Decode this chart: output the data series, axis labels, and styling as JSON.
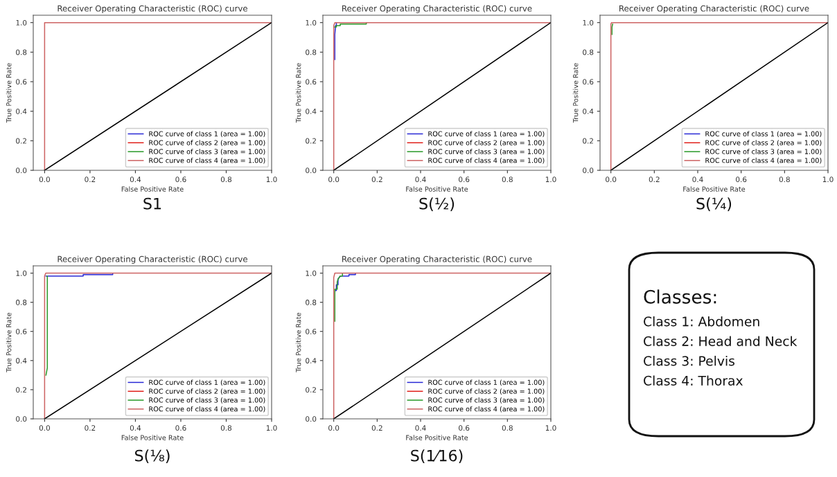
{
  "chart_data": [
    {
      "type": "line",
      "title": "Receiver Operating Characteristic (ROC) curve",
      "xlabel": "False Positive Rate",
      "ylabel": "True Positive Rate",
      "annotations": [
        "S1"
      ],
      "xlim": [
        -0.05,
        1.0
      ],
      "ylim": [
        0,
        1.05
      ],
      "xticks": [
        {
          "value": 0,
          "label": "0.0"
        },
        {
          "value": 0.2,
          "label": "0.2"
        },
        {
          "value": 0.4,
          "label": "0.4"
        },
        {
          "value": 0.6,
          "label": "0.6"
        },
        {
          "value": 0.8,
          "label": "0.8"
        },
        {
          "value": 1,
          "label": "1.0"
        }
      ],
      "yticks": [
        {
          "value": 0,
          "label": "0.0"
        },
        {
          "value": 0.2,
          "label": "0.2"
        },
        {
          "value": 0.4,
          "label": "0.4"
        },
        {
          "value": 0.6,
          "label": "0.6"
        },
        {
          "value": 0.8,
          "label": "0.8"
        },
        {
          "value": 1,
          "label": "1.0"
        }
      ],
      "legend": "bottom right",
      "grid": false,
      "series": [
        {
          "name": "ROC curve of class 1 (area = 1.00)",
          "color": "#2b2bd6"
        },
        {
          "name": "ROC curve of class 2 (area = 1.00)",
          "color": "#e0231e"
        },
        {
          "name": "ROC curve of class 3 (area = 1.00)",
          "color": "#2a9a2a"
        },
        {
          "name": "ROC curve of class 4 (area = 1.00)",
          "color": "#cd6363",
          "x": [
            0,
            0,
            1
          ],
          "values": [
            0,
            1,
            1
          ]
        },
        {
          "color": "#000000",
          "x": [
            0,
            1
          ],
          "values": [
            0,
            1
          ]
        }
      ]
    },
    {
      "type": "line",
      "title": "Receiver Operating Characteristic (ROC) curve",
      "xlabel": "False Positive Rate",
      "ylabel": "True Positive Rate",
      "annotations": [
        "S(½)"
      ],
      "xlim": [
        -0.05,
        1.0
      ],
      "ylim": [
        0,
        1.05
      ],
      "xticks": [
        {
          "value": 0,
          "label": "0.0"
        },
        {
          "value": 0.2,
          "label": "0.2"
        },
        {
          "value": 0.4,
          "label": "0.4"
        },
        {
          "value": 0.6,
          "label": "0.6"
        },
        {
          "value": 0.8,
          "label": "0.8"
        },
        {
          "value": 1,
          "label": "1.0"
        }
      ],
      "yticks": [
        {
          "value": 0,
          "label": "0.0"
        },
        {
          "value": 0.2,
          "label": "0.2"
        },
        {
          "value": 0.4,
          "label": "0.4"
        },
        {
          "value": 0.6,
          "label": "0.6"
        },
        {
          "value": 0.8,
          "label": "0.8"
        },
        {
          "value": 1,
          "label": "1.0"
        }
      ],
      "legend": "bottom right",
      "grid": false,
      "series": [
        {
          "name": "ROC curve of class 1 (area = 1.00)",
          "color": "#2b2bd6",
          "x": [
            0.005,
            0.005,
            0.008,
            0.008,
            0.012,
            0.012
          ],
          "values": [
            0.75,
            0.92,
            0.97,
            0.98,
            0.98,
            1
          ]
        },
        {
          "name": "ROC curve of class 2 (area = 1.00)",
          "color": "#e0231e"
        },
        {
          "name": "ROC curve of class 3 (area = 1.00)",
          "color": "#2a9a2a",
          "x": [
            0.004,
            0.012,
            0.012,
            0.03,
            0.03,
            0.15,
            0.15
          ],
          "values": [
            0.97,
            0.97,
            0.98,
            0.98,
            0.99,
            0.99,
            1
          ]
        },
        {
          "name": "ROC curve of class 4 (area = 1.00)",
          "color": "#cd6363",
          "x": [
            0,
            0,
            0.005,
            1
          ],
          "values": [
            0,
            0.98,
            1,
            1
          ]
        },
        {
          "color": "#000000",
          "x": [
            0,
            1
          ],
          "values": [
            0,
            1
          ]
        }
      ]
    },
    {
      "type": "line",
      "title": "Receiver Operating Characteristic (ROC) curve",
      "xlabel": "False Positive Rate",
      "ylabel": "True Positive Rate",
      "annotations": [
        "S(¼)"
      ],
      "xlim": [
        -0.05,
        1.0
      ],
      "ylim": [
        0,
        1.05
      ],
      "xticks": [
        {
          "value": 0,
          "label": "0.0"
        },
        {
          "value": 0.2,
          "label": "0.2"
        },
        {
          "value": 0.4,
          "label": "0.4"
        },
        {
          "value": 0.6,
          "label": "0.6"
        },
        {
          "value": 0.8,
          "label": "0.8"
        },
        {
          "value": 1,
          "label": "1.0"
        }
      ],
      "yticks": [
        {
          "value": 0,
          "label": "0.0"
        },
        {
          "value": 0.2,
          "label": "0.2"
        },
        {
          "value": 0.4,
          "label": "0.4"
        },
        {
          "value": 0.6,
          "label": "0.6"
        },
        {
          "value": 0.8,
          "label": "0.8"
        },
        {
          "value": 1,
          "label": "1.0"
        }
      ],
      "legend": "bottom right",
      "grid": false,
      "series": [
        {
          "name": "ROC curve of class 1 (area = 1.00)",
          "color": "#2b2bd6"
        },
        {
          "name": "ROC curve of class 2 (area = 1.00)",
          "color": "#e0231e"
        },
        {
          "name": "ROC curve of class 3 (area = 1.00)",
          "color": "#2a9a2a",
          "x": [
            0.005,
            0.005,
            0.008
          ],
          "values": [
            0.92,
            0.97,
            0.99
          ]
        },
        {
          "name": "ROC curve of class 4 (area = 1.00)",
          "color": "#cd6363",
          "x": [
            0,
            0,
            0.003,
            1
          ],
          "values": [
            0,
            0.99,
            1,
            1
          ]
        },
        {
          "color": "#000000",
          "x": [
            0,
            1
          ],
          "values": [
            0,
            1
          ]
        }
      ]
    },
    {
      "type": "line",
      "title": "Receiver Operating Characteristic (ROC) curve",
      "xlabel": "False Positive Rate",
      "ylabel": "True Positive Rate",
      "annotations": [
        "S(⅛)"
      ],
      "xlim": [
        -0.05,
        1.0
      ],
      "ylim": [
        0,
        1.05
      ],
      "xticks": [
        {
          "value": 0,
          "label": "0.0"
        },
        {
          "value": 0.2,
          "label": "0.2"
        },
        {
          "value": 0.4,
          "label": "0.4"
        },
        {
          "value": 0.6,
          "label": "0.6"
        },
        {
          "value": 0.8,
          "label": "0.8"
        },
        {
          "value": 1,
          "label": "1.0"
        }
      ],
      "yticks": [
        {
          "value": 0,
          "label": "0.0"
        },
        {
          "value": 0.2,
          "label": "0.2"
        },
        {
          "value": 0.4,
          "label": "0.4"
        },
        {
          "value": 0.6,
          "label": "0.6"
        },
        {
          "value": 0.8,
          "label": "0.8"
        },
        {
          "value": 1,
          "label": "1.0"
        }
      ],
      "legend": "bottom right",
      "grid": false,
      "series": [
        {
          "name": "ROC curve of class 1 (area = 1.00)",
          "color": "#2b2bd6",
          "x": [
            0.006,
            0.17,
            0.17,
            0.3,
            0.3
          ],
          "values": [
            0.98,
            0.98,
            0.99,
            0.99,
            0.995
          ]
        },
        {
          "name": "ROC curve of class 2 (area = 1.00)",
          "color": "#e0231e"
        },
        {
          "name": "ROC curve of class 3 (area = 1.00)",
          "color": "#2a9a2a",
          "x": [
            0.006,
            0.012,
            0.012
          ],
          "values": [
            0.3,
            0.35,
            0.98
          ]
        },
        {
          "name": "ROC curve of class 4 (area = 1.00)",
          "color": "#cd6363",
          "x": [
            0,
            0,
            0.005,
            1
          ],
          "values": [
            0,
            0.98,
            1,
            1
          ]
        },
        {
          "color": "#000000",
          "x": [
            0,
            1
          ],
          "values": [
            0,
            1
          ]
        }
      ]
    },
    {
      "type": "line",
      "title": "Receiver Operating Characteristic (ROC) curve",
      "xlabel": "False Positive Rate",
      "ylabel": "True Positive Rate",
      "annotations": [
        "S(1⁄16)"
      ],
      "xlim": [
        -0.05,
        1.0
      ],
      "ylim": [
        0,
        1.05
      ],
      "xticks": [
        {
          "value": 0,
          "label": "0.0"
        },
        {
          "value": 0.2,
          "label": "0.2"
        },
        {
          "value": 0.4,
          "label": "0.4"
        },
        {
          "value": 0.6,
          "label": "0.6"
        },
        {
          "value": 0.8,
          "label": "0.8"
        },
        {
          "value": 1,
          "label": "1.0"
        }
      ],
      "yticks": [
        {
          "value": 0,
          "label": "0.0"
        },
        {
          "value": 0.2,
          "label": "0.2"
        },
        {
          "value": 0.4,
          "label": "0.4"
        },
        {
          "value": 0.6,
          "label": "0.6"
        },
        {
          "value": 0.8,
          "label": "0.8"
        },
        {
          "value": 1,
          "label": "1.0"
        }
      ],
      "legend": "bottom right",
      "grid": false,
      "series": [
        {
          "name": "ROC curve of class 1 (area = 1.00)",
          "color": "#2b2bd6",
          "x": [
            0.008,
            0.012,
            0.012,
            0.02,
            0.02,
            0.03,
            0.07,
            0.07,
            0.1,
            0.1
          ],
          "values": [
            0.88,
            0.88,
            0.92,
            0.92,
            0.96,
            0.98,
            0.98,
            0.99,
            0.99,
            0.995
          ]
        },
        {
          "name": "ROC curve of class 2 (area = 1.00)",
          "color": "#e0231e"
        },
        {
          "name": "ROC curve of class 3 (area = 1.00)",
          "color": "#2a9a2a",
          "x": [
            0.005,
            0.005,
            0.016,
            0.016,
            0.02,
            0.03,
            0.04,
            0.04
          ],
          "values": [
            0.67,
            0.89,
            0.89,
            0.94,
            0.96,
            0.98,
            0.98,
            0.995
          ]
        },
        {
          "name": "ROC curve of class 4 (area = 1.00)",
          "color": "#cd6363",
          "x": [
            0,
            0,
            0.005,
            1
          ],
          "values": [
            0,
            0.97,
            1,
            1
          ]
        },
        {
          "color": "#000000",
          "x": [
            0,
            1
          ],
          "values": [
            0,
            1
          ]
        }
      ]
    },
    {
      "type": "other",
      "title": "Classes:",
      "annotations": [
        "Class 1: Abdomen",
        "Class 2: Head and Neck",
        "Class 3: Pelvis",
        "Class 4: Thorax"
      ]
    }
  ]
}
